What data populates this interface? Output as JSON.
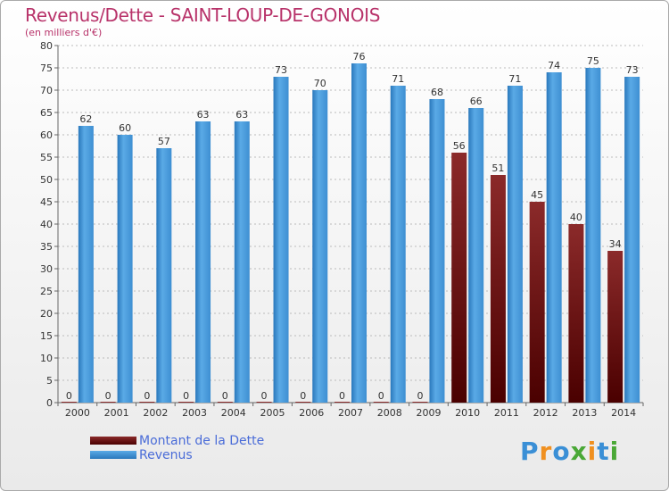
{
  "title": "Revenus/Dette - SAINT-LOUP-DE-GONOIS",
  "subtitle": "(en milliers d'€)",
  "logo": {
    "text": "Proxiti"
  },
  "colors": {
    "dette_top": "#8b2a2a",
    "dette_bottom": "#4a0000",
    "revenus_top": "#5aaae6",
    "revenus_bottom": "#2a78bc",
    "title": "#b8336a",
    "legend_text": "#4a6cd8"
  },
  "chart_data": {
    "type": "bar",
    "title": "Revenus/Dette - SAINT-LOUP-DE-GONOIS",
    "subtitle": "(en milliers d'€)",
    "categories": [
      "2000",
      "2001",
      "2002",
      "2003",
      "2004",
      "2005",
      "2006",
      "2007",
      "2008",
      "2009",
      "2010",
      "2011",
      "2012",
      "2013",
      "2014"
    ],
    "series": [
      {
        "name": "Montant de la Dette",
        "values": [
          0,
          0,
          0,
          0,
          0,
          0,
          0,
          0,
          0,
          0,
          56,
          51,
          45,
          40,
          34
        ]
      },
      {
        "name": "Revenus",
        "values": [
          62,
          60,
          57,
          63,
          63,
          73,
          70,
          76,
          71,
          68,
          66,
          71,
          74,
          75,
          73
        ]
      }
    ],
    "ylim": [
      0,
      80
    ],
    "yticks": [
      0,
      5,
      10,
      15,
      20,
      25,
      30,
      35,
      40,
      45,
      50,
      55,
      60,
      65,
      70,
      75,
      80
    ],
    "grid": "horizontal-dashed",
    "legend": "bottom-left"
  }
}
